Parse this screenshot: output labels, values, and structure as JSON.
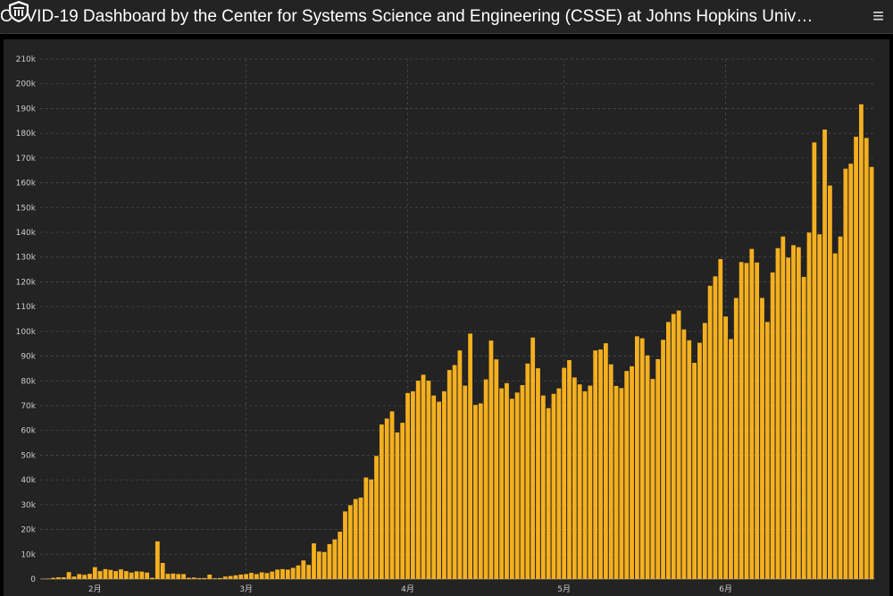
{
  "header": {
    "title": "COVID-19 Dashboard by the Center for Systems Science and Engineering (CSSE) at Johns Hopkins University…",
    "logo_icon": "university-shield-icon",
    "menu_icon": "hamburger-menu-icon",
    "menu_glyph": "≡"
  },
  "colors": {
    "bar": "#f5b01f",
    "background": "#232323",
    "grid": "#4a4a4a"
  },
  "chart_data": {
    "type": "bar",
    "start_date": "2020-01-22",
    "grid": true,
    "ylim": [
      0,
      210000
    ],
    "yticks": [
      0,
      10000,
      20000,
      30000,
      40000,
      50000,
      60000,
      70000,
      80000,
      90000,
      100000,
      110000,
      120000,
      130000,
      140000,
      150000,
      160000,
      170000,
      180000,
      190000,
      200000,
      210000
    ],
    "ytick_labels": [
      "0",
      "10k",
      "20k",
      "30k",
      "40k",
      "50k",
      "60k",
      "70k",
      "80k",
      "90k",
      "100k",
      "110k",
      "120k",
      "130k",
      "140k",
      "150k",
      "160k",
      "170k",
      "180k",
      "190k",
      "200k",
      "210k"
    ],
    "xticks": [
      {
        "date": "2020-02-01",
        "label": "2月"
      },
      {
        "date": "2020-03-01",
        "label": "3月"
      },
      {
        "date": "2020-04-01",
        "label": "4月"
      },
      {
        "date": "2020-05-01",
        "label": "5月"
      },
      {
        "date": "2020-06-01",
        "label": "6月"
      }
    ],
    "values": [
      100,
      200,
      500,
      700,
      700,
      2800,
      1000,
      2000,
      1700,
      2100,
      4800,
      3200,
      4000,
      3700,
      3200,
      3900,
      3200,
      2600,
      3100,
      3000,
      2600,
      500,
      15200,
      6500,
      2100,
      2200,
      2000,
      2000,
      500,
      600,
      400,
      400,
      1800,
      300,
      400,
      1000,
      1200,
      1500,
      1800,
      2000,
      2500,
      2000,
      2700,
      2400,
      3000,
      3800,
      4000,
      3800,
      4500,
      5500,
      7500,
      5700,
      14400,
      11100,
      10900,
      14100,
      16000,
      19100,
      27300,
      29800,
      32300,
      32900,
      41000,
      40200,
      49700,
      62400,
      64800,
      67700,
      59200,
      63100,
      75100,
      75800,
      80100,
      82500,
      80100,
      74100,
      71600,
      75800,
      84400,
      86400,
      92300,
      78100,
      99100,
      70300,
      70900,
      80600,
      96300,
      88700,
      77000,
      79100,
      72800,
      75300,
      78300,
      87000,
      97500,
      85100,
      74100,
      69000,
      74800,
      77000,
      85300,
      88400,
      81400,
      78600,
      75800,
      78100,
      92300,
      92700,
      95200,
      86700,
      78000,
      77100,
      84000,
      85900,
      98000,
      97200,
      90300,
      80800,
      88800,
      96600,
      103800,
      107000,
      108400,
      100800,
      96400,
      87300,
      95400,
      103400,
      118400,
      122200,
      129200,
      106000,
      96900,
      113500,
      128000,
      127600,
      133300,
      127800,
      113500,
      103800,
      123800,
      133600,
      138300,
      129800,
      134800,
      134000,
      122000,
      139900,
      176300,
      139200,
      181500,
      158900,
      131500,
      138300,
      165700,
      167700,
      178600,
      191700,
      178100,
      166400
    ]
  }
}
